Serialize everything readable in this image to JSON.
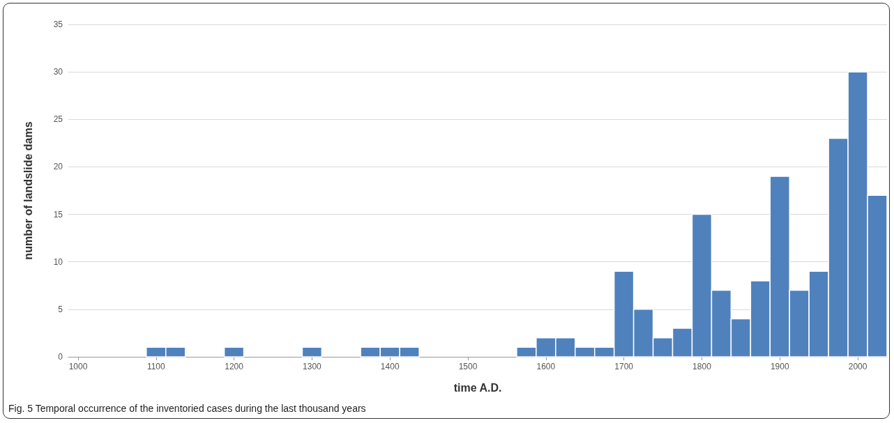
{
  "chart_data": {
    "type": "histogram",
    "xlabel": "time A.D.",
    "ylabel": "number of landslide dams",
    "bins": [
      987.5,
      1012.5,
      1037.5,
      1062.5,
      1087.5,
      1112.5,
      1137.5,
      1162.5,
      1187.5,
      1212.5,
      1237.5,
      1262.5,
      1287.5,
      1312.5,
      1337.5,
      1362.5,
      1387.5,
      1412.5,
      1437.5,
      1462.5,
      1487.5,
      1512.5,
      1537.5,
      1562.5,
      1587.5,
      1612.5,
      1637.5,
      1662.5,
      1687.5,
      1712.5,
      1737.5,
      1762.5,
      1787.5,
      1812.5,
      1837.5,
      1862.5,
      1887.5,
      1912.5,
      1937.5,
      1962.5,
      1987.5,
      2012.5,
      2037.5
    ],
    "values": [
      0,
      0,
      0,
      0,
      1,
      1,
      0,
      0,
      1,
      0,
      0,
      0,
      1,
      0,
      0,
      1,
      1,
      1,
      0,
      0,
      0,
      0,
      0,
      1,
      2,
      2,
      1,
      1,
      9,
      5,
      2,
      3,
      15,
      7,
      4,
      8,
      19,
      7,
      9,
      23,
      30,
      17
    ],
    "color": "#4f81bd",
    "xlim": [
      987.5,
      2037.5
    ],
    "xticks": [
      1000,
      1100,
      1200,
      1300,
      1400,
      1500,
      1600,
      1700,
      1800,
      1900,
      2000
    ],
    "ylim": [
      0,
      35
    ],
    "yticks": [
      0,
      5,
      10,
      15,
      20,
      25,
      30,
      35
    ],
    "grid": "y",
    "annotations": [
      "Fig. 5 Temporal occurrence of the inventoried cases during the last thousand years"
    ]
  }
}
